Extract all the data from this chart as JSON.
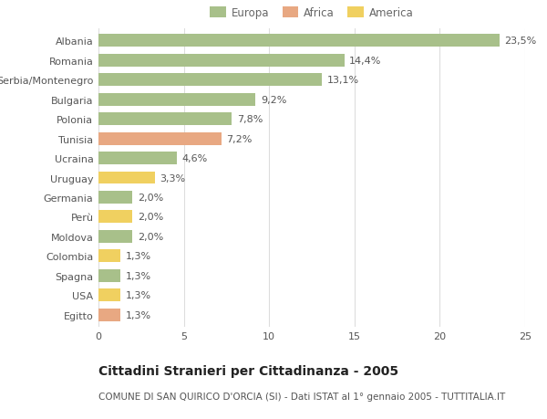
{
  "title": "Cittadini Stranieri per Cittadinanza - 2005",
  "subtitle": "COMUNE DI SAN QUIRICO D'ORCIA (SI) - Dati ISTAT al 1° gennaio 2005 - TUTTITALIA.IT",
  "categories": [
    "Albania",
    "Romania",
    "Serbia/Montenegro",
    "Bulgaria",
    "Polonia",
    "Tunisia",
    "Ucraina",
    "Uruguay",
    "Germania",
    "Perù",
    "Moldova",
    "Colombia",
    "Spagna",
    "USA",
    "Egitto"
  ],
  "values": [
    23.5,
    14.4,
    13.1,
    9.2,
    7.8,
    7.2,
    4.6,
    3.3,
    2.0,
    2.0,
    2.0,
    1.3,
    1.3,
    1.3,
    1.3
  ],
  "labels": [
    "23,5%",
    "14,4%",
    "13,1%",
    "9,2%",
    "7,8%",
    "7,2%",
    "4,6%",
    "3,3%",
    "2,0%",
    "2,0%",
    "2,0%",
    "1,3%",
    "1,3%",
    "1,3%",
    "1,3%"
  ],
  "colors": [
    "#a8c08a",
    "#a8c08a",
    "#a8c08a",
    "#a8c08a",
    "#a8c08a",
    "#e8a882",
    "#a8c08a",
    "#f0d060",
    "#a8c08a",
    "#f0d060",
    "#a8c08a",
    "#f0d060",
    "#a8c08a",
    "#f0d060",
    "#e8a882"
  ],
  "legend": [
    {
      "label": "Europa",
      "color": "#a8c08a"
    },
    {
      "label": "Africa",
      "color": "#e8a882"
    },
    {
      "label": "America",
      "color": "#f0d060"
    }
  ],
  "xlim": [
    0,
    25
  ],
  "xticks": [
    0,
    5,
    10,
    15,
    20,
    25
  ],
  "background_color": "#ffffff",
  "grid_color": "#dddddd",
  "bar_height": 0.65,
  "title_fontsize": 10,
  "subtitle_fontsize": 7.5,
  "label_fontsize": 8,
  "tick_fontsize": 8,
  "legend_fontsize": 8.5
}
